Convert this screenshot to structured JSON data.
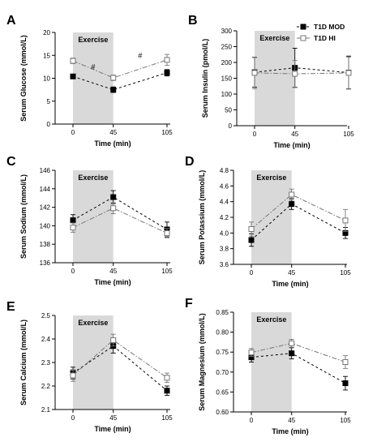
{
  "legend": {
    "position": "top-right",
    "entries": [
      {
        "label": "T1D MOD",
        "marker": "filled-square",
        "line": "dashed",
        "color": "#000000"
      },
      {
        "label": "T1D HI",
        "marker": "open-square",
        "line": "dash-dot",
        "color": "#777777"
      }
    ]
  },
  "shade_color": "#d9d9d9",
  "chart_data": [
    {
      "panel": "A",
      "type": "line",
      "shaded_label": "Exercise",
      "xlabel": "Time (min)",
      "ylabel": "Serum Glucose (mmol/L)",
      "x": [
        0,
        45,
        105
      ],
      "x_ticks": [
        "0",
        "45",
        "105"
      ],
      "ylim": [
        0,
        20
      ],
      "yticks": [
        "0",
        "5",
        "10",
        "15",
        "20"
      ],
      "series": [
        {
          "name": "T1D MOD",
          "values": [
            10.4,
            7.5,
            11.2
          ],
          "err": [
            0.4,
            0.6,
            0.7
          ]
        },
        {
          "name": "T1D HI",
          "values": [
            13.8,
            10.1,
            14.0
          ],
          "err": [
            0.6,
            0.6,
            1.2
          ]
        }
      ],
      "annotations": [
        {
          "text": "#",
          "x": 22.5,
          "y": 12.5
        },
        {
          "text": "#",
          "x": 75,
          "y": 15
        }
      ]
    },
    {
      "panel": "B",
      "type": "line",
      "shaded_label": "Exercise",
      "xlabel": "Time (min)",
      "ylabel": "Serum Insulin (pmol/L)",
      "x": [
        0,
        45,
        105
      ],
      "x_ticks": [
        "0",
        "45",
        "105"
      ],
      "ylim": [
        0,
        300
      ],
      "yticks": [
        "0",
        "50",
        "100",
        "150",
        "200",
        "250",
        "300"
      ],
      "series": [
        {
          "name": "T1D MOD",
          "values": [
            169,
            183,
            168
          ],
          "err": [
            47,
            62,
            52
          ]
        },
        {
          "name": "T1D HI",
          "values": [
            167,
            164,
            167
          ],
          "err": [
            50,
            42,
            50
          ]
        }
      ],
      "annotations": []
    },
    {
      "panel": "C",
      "type": "line",
      "shaded_label": "Exercise",
      "xlabel": "Time (min)",
      "ylabel": "Serum Sodium (mmol/L)",
      "x": [
        0,
        45,
        105
      ],
      "x_ticks": [
        "0",
        "45",
        "105"
      ],
      "ylim": [
        136,
        146
      ],
      "yticks": [
        "136",
        "138",
        "140",
        "142",
        "144",
        "146"
      ],
      "series": [
        {
          "name": "T1D MOD",
          "values": [
            140.6,
            143.1,
            139.6
          ],
          "err": [
            0.6,
            0.7,
            0.8
          ]
        },
        {
          "name": "T1D HI",
          "values": [
            139.8,
            141.9,
            139.2
          ],
          "err": [
            0.5,
            0.6,
            0.5
          ]
        }
      ],
      "annotations": []
    },
    {
      "panel": "D",
      "type": "line",
      "shaded_label": "Exercise",
      "xlabel": "Time (min)",
      "ylabel": "Serum Potassium (mmol/L)",
      "x": [
        0,
        45,
        105
      ],
      "x_ticks": [
        "0",
        "45",
        "105"
      ],
      "ylim": [
        3.6,
        4.8
      ],
      "yticks": [
        "3.6",
        "3.8",
        "4.0",
        "4.2",
        "4.4",
        "4.6",
        "4.8"
      ],
      "series": [
        {
          "name": "T1D MOD",
          "values": [
            3.91,
            4.37,
            4.0
          ],
          "err": [
            0.08,
            0.07,
            0.07
          ]
        },
        {
          "name": "T1D HI",
          "values": [
            4.05,
            4.49,
            4.16
          ],
          "err": [
            0.09,
            0.07,
            0.14
          ]
        }
      ],
      "annotations": []
    },
    {
      "panel": "E",
      "type": "line",
      "shaded_label": "Exercise",
      "xlabel": "Time (min)",
      "ylabel": "Serum Calcium (mmol/L)",
      "x": [
        0,
        45,
        105
      ],
      "x_ticks": [
        "0",
        "45",
        "105"
      ],
      "ylim": [
        2.1,
        2.5
      ],
      "yticks": [
        "2.1",
        "2.2",
        "2.3",
        "2.4",
        "2.5"
      ],
      "series": [
        {
          "name": "T1D MOD",
          "values": [
            2.255,
            2.37,
            2.18
          ],
          "err": [
            0.025,
            0.03,
            0.02
          ]
        },
        {
          "name": "T1D HI",
          "values": [
            2.245,
            2.395,
            2.235
          ],
          "err": [
            0.025,
            0.025,
            0.02
          ]
        }
      ],
      "annotations": []
    },
    {
      "panel": "F",
      "type": "line",
      "shaded_label": "Exercise",
      "xlabel": "Time (min)",
      "ylabel": "Serum Magnesium (mmol/L)",
      "x": [
        0,
        45,
        105
      ],
      "x_ticks": [
        "0",
        "45",
        "105"
      ],
      "ylim": [
        0.6,
        0.85
      ],
      "yticks": [
        "0.60",
        "0.65",
        "0.70",
        "0.75",
        "0.80",
        "0.85"
      ],
      "series": [
        {
          "name": "T1D MOD",
          "values": [
            0.737,
            0.747,
            0.672
          ],
          "err": [
            0.012,
            0.014,
            0.017
          ]
        },
        {
          "name": "T1D HI",
          "values": [
            0.749,
            0.772,
            0.725
          ],
          "err": [
            0.01,
            0.01,
            0.016
          ]
        }
      ],
      "annotations": []
    }
  ]
}
